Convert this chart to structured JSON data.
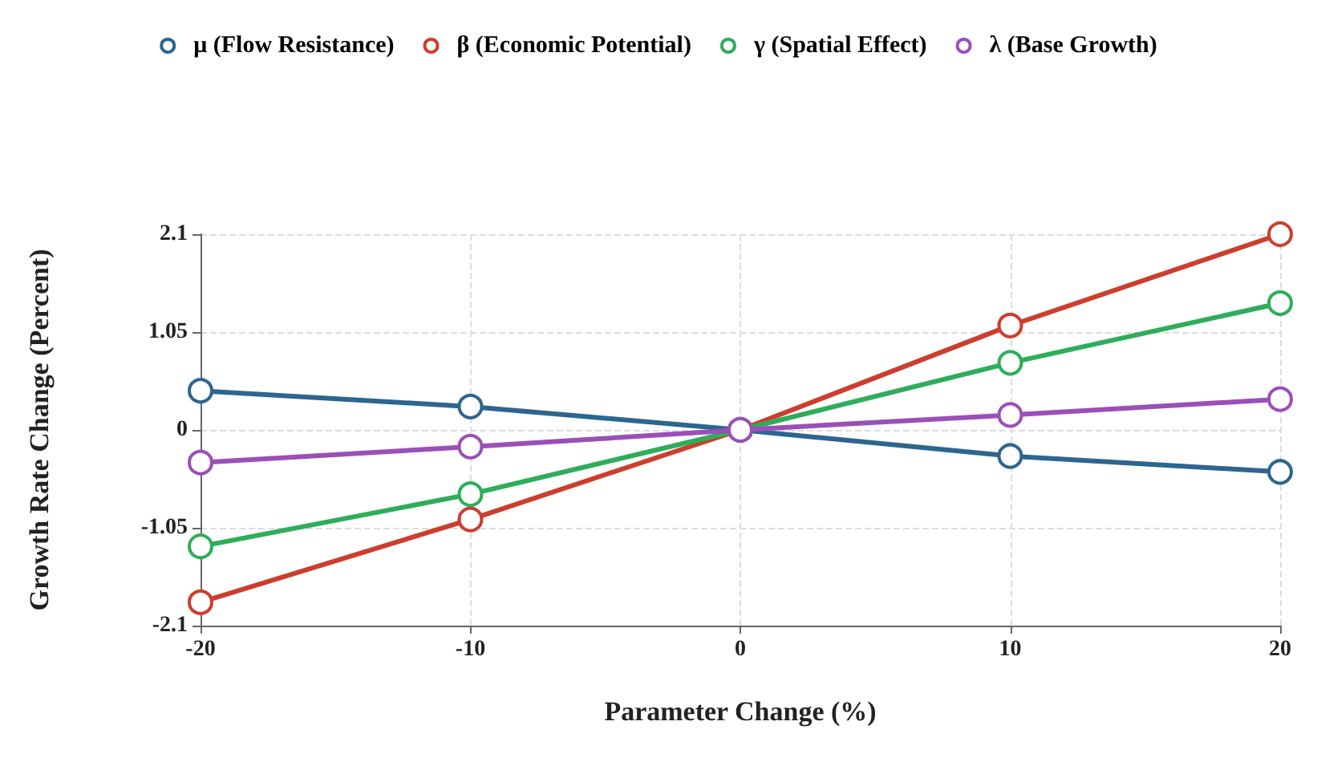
{
  "chart_data": {
    "type": "line",
    "xlabel": "Parameter Change (%)",
    "ylabel": "Growth Rate Change (Percent)",
    "x": [
      -20,
      -10,
      0,
      10,
      20
    ],
    "xlim": [
      -20,
      20
    ],
    "xticks": [
      -20,
      -10,
      0,
      10,
      20
    ],
    "ylim": [
      -2.1,
      2.1
    ],
    "yticks": [
      -2.1,
      -1.05,
      0,
      1.05,
      2.1
    ],
    "grid": true,
    "legend": "top",
    "marker": "circle",
    "line_style": "solid",
    "series": [
      {
        "name": "μ (Flow Resistance)",
        "color": "#2c6690",
        "values": [
          0.42,
          0.25,
          0,
          -0.28,
          -0.45
        ]
      },
      {
        "name": "β (Economic Potential)",
        "color": "#cc3e2e",
        "values": [
          -1.85,
          -0.96,
          0,
          1.12,
          2.1
        ]
      },
      {
        "name": "γ (Spatial Effect)",
        "color": "#2ead5a",
        "values": [
          -1.25,
          -0.69,
          0,
          0.72,
          1.36
        ]
      },
      {
        "name": "λ (Base Growth)",
        "color": "#9b4fb8",
        "values": [
          -0.35,
          -0.18,
          0,
          0.16,
          0.33
        ]
      }
    ]
  }
}
